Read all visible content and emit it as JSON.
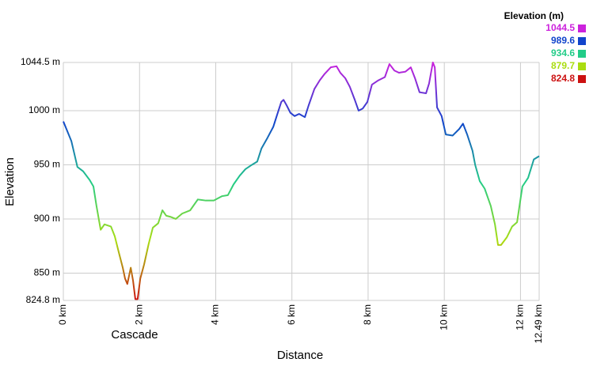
{
  "chart_data": {
    "type": "line",
    "x_label": "Distance",
    "y_label": "Elevation",
    "annotation": "Cascade",
    "legend": {
      "title": "Elevation (m)",
      "items": [
        {
          "label": 1044.5,
          "color": "#cc22dd"
        },
        {
          "label": 989.6,
          "color": "#1144cc"
        },
        {
          "label": 934.6,
          "color": "#22cc88"
        },
        {
          "label": 879.7,
          "color": "#aadd11"
        },
        {
          "label": 824.8,
          "color": "#cc1111"
        }
      ]
    },
    "x": [
      0,
      0.21,
      0.37,
      0.52,
      0.69,
      0.79,
      0.87,
      0.98,
      1.08,
      1.25,
      1.35,
      1.45,
      1.56,
      1.62,
      1.68,
      1.77,
      1.83,
      1.89,
      1.95,
      2.02,
      2.12,
      2.24,
      2.35,
      2.49,
      2.6,
      2.7,
      2.81,
      2.95,
      3.12,
      3.33,
      3.53,
      3.74,
      3.95,
      4.16,
      4.32,
      4.47,
      4.63,
      4.78,
      4.95,
      5.09,
      5.2,
      5.36,
      5.51,
      5.61,
      5.72,
      5.78,
      5.86,
      5.96,
      6.07,
      6.19,
      6.34,
      6.44,
      6.59,
      6.73,
      6.86,
      7.02,
      7.17,
      7.27,
      7.4,
      7.52,
      7.65,
      7.75,
      7.86,
      7.98,
      8.1,
      8.27,
      8.44,
      8.56,
      8.69,
      8.81,
      8.98,
      9.12,
      9.23,
      9.35,
      9.52,
      9.6,
      9.7,
      9.75,
      9.81,
      9.93,
      10.04,
      10.22,
      10.39,
      10.49,
      10.6,
      10.74,
      10.81,
      10.93,
      11.06,
      11.22,
      11.33,
      11.41,
      11.49,
      11.64,
      11.78,
      11.91,
      12.05,
      12.2,
      12.35,
      12.49
    ],
    "series": [
      {
        "name": "Elevation",
        "values": [
          990,
          972,
          948,
          944,
          936,
          930,
          912,
          890,
          895,
          893,
          884,
          870,
          855,
          845,
          840,
          855,
          843,
          826,
          826,
          845,
          858,
          877,
          892,
          896,
          908,
          903,
          902,
          900,
          905,
          908,
          918,
          917,
          917,
          921,
          922,
          932,
          940,
          946,
          950,
          953,
          965,
          975,
          985,
          996,
          1008,
          1010,
          1005,
          998,
          995,
          997,
          994,
          1005,
          1020,
          1028,
          1034,
          1040,
          1041,
          1035,
          1030,
          1022,
          1010,
          1000,
          1002,
          1008,
          1024,
          1028,
          1031,
          1043,
          1037,
          1035,
          1036,
          1040,
          1030,
          1017,
          1016,
          1025,
          1044.5,
          1040,
          1003,
          995,
          978,
          977,
          983,
          988,
          978,
          963,
          950,
          935,
          928,
          912,
          895,
          876,
          876,
          883,
          893,
          897,
          930,
          938,
          955,
          958
        ]
      }
    ],
    "xlim": [
      0,
      12.49
    ],
    "ylim": [
      824.8,
      1044.5
    ],
    "xticks": [
      {
        "value": 0,
        "label": "0 km"
      },
      {
        "value": 2,
        "label": "2 km"
      },
      {
        "value": 4,
        "label": "4 km"
      },
      {
        "value": 6,
        "label": "6 km"
      },
      {
        "value": 8,
        "label": "8 km"
      },
      {
        "value": 10,
        "label": "10 km"
      },
      {
        "value": 12,
        "label": "12 km"
      },
      {
        "value": 12.49,
        "label": "12.49 km"
      }
    ],
    "yticks": [
      {
        "value": 824.8,
        "label": "824.8 m"
      },
      {
        "value": 850,
        "label": "850 m"
      },
      {
        "value": 900,
        "label": "900 m"
      },
      {
        "value": 950,
        "label": "950 m"
      },
      {
        "value": 1000,
        "label": "1000 m"
      },
      {
        "value": 1044.5,
        "label": "1044.5 m"
      }
    ],
    "grid": true
  }
}
